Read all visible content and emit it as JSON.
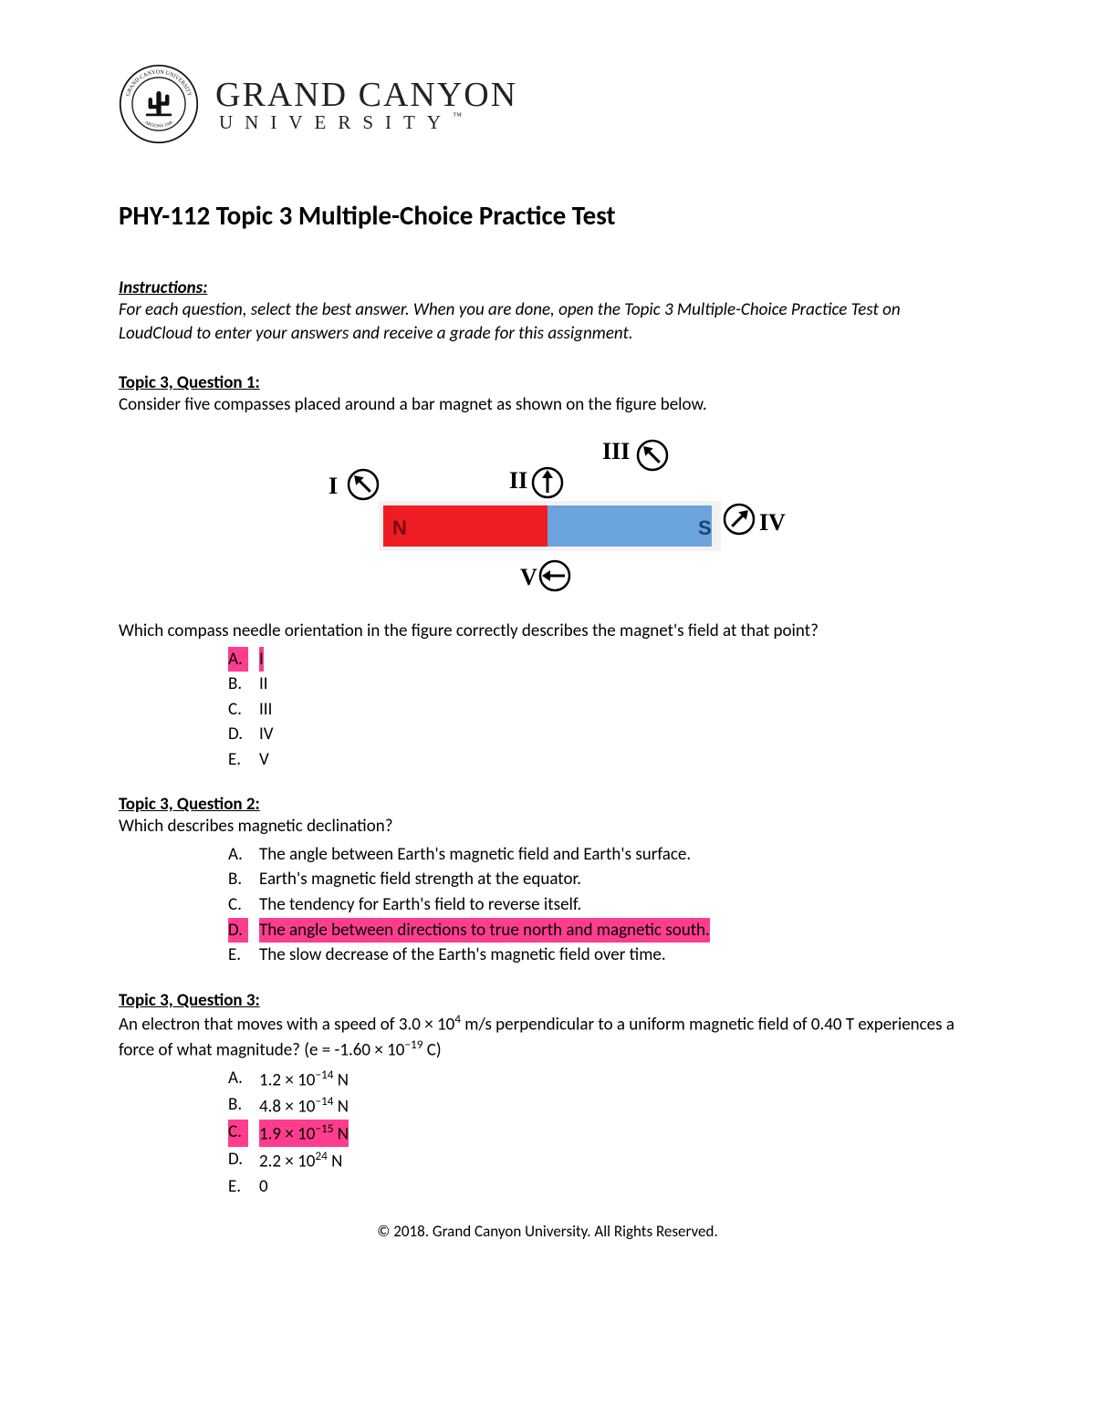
{
  "university": {
    "name": "GRAND CANYON",
    "subtitle": "UNIVERSITY",
    "seal_top_text": "GRAND CANYON UNIVERSITY",
    "seal_bottom_text": "ARIZONA 1949"
  },
  "title": "PHY-112 Topic 3 Multiple-Choice Practice Test",
  "instructions_label": "Instructions:",
  "instructions_text": "For each question, select the best answer. When you are done, open the Topic 3 Multiple-Choice Practice Test on LoudCloud to enter your answers and receive a grade for this assignment.",
  "figure": {
    "magnet": {
      "n_label": "N",
      "n_color": "#ef1c24",
      "s_label": "S",
      "s_color": "#6ba4dc",
      "bg_color": "#f2f2f2"
    },
    "compasses": {
      "I": {
        "label": "I",
        "angle": 135
      },
      "II": {
        "label": "II",
        "angle": 90
      },
      "III": {
        "label": "III",
        "angle": 135
      },
      "IV": {
        "label": "IV",
        "angle": 45
      },
      "V": {
        "label": "V",
        "angle": 180
      }
    }
  },
  "questions": [
    {
      "heading": "Topic 3, Question 1:",
      "prompt_before_figure": "Consider five compasses placed around a bar magnet as shown on the figure below.",
      "prompt_after_figure": "Which compass needle orientation in the figure correctly describes the magnet's field at that point?",
      "has_figure": true,
      "choices": [
        {
          "letter": "A.",
          "text": "I",
          "highlighted": true
        },
        {
          "letter": "B.",
          "text": "II",
          "highlighted": false
        },
        {
          "letter": "C.",
          "text": "III",
          "highlighted": false
        },
        {
          "letter": "D.",
          "text": "IV",
          "highlighted": false
        },
        {
          "letter": "E.",
          "text": "V",
          "highlighted": false
        }
      ]
    },
    {
      "heading": "Topic 3, Question 2:",
      "prompt": "Which describes magnetic declination?",
      "choices": [
        {
          "letter": "A.",
          "text": "The angle between Earth's magnetic field and Earth's surface.",
          "highlighted": false
        },
        {
          "letter": "B.",
          "text": "Earth's magnetic field strength at the equator.",
          "highlighted": false
        },
        {
          "letter": "C.",
          "text": "The tendency for Earth's field to reverse itself.",
          "highlighted": false
        },
        {
          "letter": "D.",
          "text": "The angle between directions to true north and magnetic south.",
          "highlighted": true
        },
        {
          "letter": "E.",
          "text": "The slow decrease of the Earth's magnetic field over time.",
          "highlighted": false
        }
      ]
    },
    {
      "heading": "Topic 3, Question 3:",
      "prompt_html": " An electron that moves with a speed of 3.0 × 10<sup>4</sup> m/s perpendicular to a uniform magnetic field of 0.40 T experiences a force of what magnitude? (e = -1.60 × 10<sup>−19</sup> C)",
      "choices": [
        {
          "letter": "A.",
          "text_html": "1.2 × 10<sup>−14</sup> N",
          "highlighted": false
        },
        {
          "letter": "B.",
          "text_html": "4.8 × 10<sup>−14</sup> N",
          "highlighted": false
        },
        {
          "letter": "C.",
          "text_html": "1.9 × 10<sup>−15</sup> N",
          "highlighted": true
        },
        {
          "letter": "D.",
          "text_html": "2.2 × 10<sup>24</sup> N",
          "highlighted": false
        },
        {
          "letter": "E.",
          "text_html": "0",
          "highlighted": false
        }
      ]
    }
  ],
  "footer": "© 2018. Grand Canyon University. All Rights Reserved.",
  "colors": {
    "highlight": "#ff3d8e",
    "text": "#000000",
    "background": "#ffffff"
  }
}
